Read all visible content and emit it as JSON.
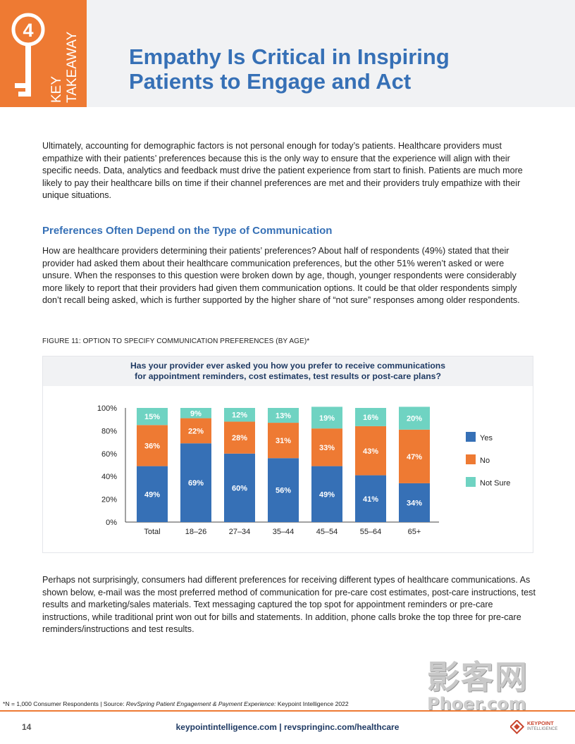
{
  "header": {
    "key_number": "4",
    "key_label_line1": "KEY",
    "key_label_line2": "TAKEAWAY",
    "title_line1": "Empathy Is Critical in Inspiring",
    "title_line2": "Patients to Engage and Act"
  },
  "body": {
    "paragraph1": "Ultimately, accounting for demographic factors is not personal enough for today’s patients. Healthcare providers must empathize with their patients’ preferences because this is the only way to ensure that the experience will align with their specific needs. Data, analytics and feedback must drive the patient experience from start to finish. Patients are much more likely to pay their healthcare bills on time if their channel preferences are met and their providers truly empathize with their unique situations.",
    "section_heading": "Preferences Often Depend on the Type of Communication",
    "paragraph2": "How are healthcare providers determining their patients’ preferences? About half of respondents (49%) stated that their provider had asked them about their healthcare communication preferences, but the other 51% weren’t asked or were unsure. When the responses to this question were broken down by age, though, younger respondents were considerably more likely to report that their providers had given them communication options. It could be that older respondents simply don’t recall being asked, which is further supported by the higher share of “not sure” responses among older respondents.",
    "paragraph3": "Perhaps not surprisingly, consumers had different preferences for receiving different types of healthcare communications. As shown below, e-mail was the most preferred method of communication for pre-care cost estimates, post-care instructions, test results and marketing/sales materials. Text messaging captured the top spot for appointment reminders or pre-care instructions, while traditional print won out for bills and statements. In addition, phone calls broke the top three for pre-care reminders/instructions and test results."
  },
  "figure": {
    "caption": "FIGURE 11: OPTION TO SPECIFY COMMUNICATION PREFERENCES (BY AGE)*",
    "question_line1": "Has your provider ever asked you how you prefer to receive communications",
    "question_line2": "for appointment reminders, cost estimates, test results or post-care plans?"
  },
  "chart_data": {
    "type": "bar",
    "stacked": true,
    "categories": [
      "Total",
      "18–26",
      "27–34",
      "35–44",
      "45–54",
      "55–64",
      "65+"
    ],
    "series": [
      {
        "name": "Yes",
        "color": "#3670b6",
        "values": [
          49,
          69,
          60,
          56,
          49,
          41,
          34
        ]
      },
      {
        "name": "No",
        "color": "#ee7a33",
        "values": [
          36,
          22,
          28,
          31,
          33,
          43,
          47
        ]
      },
      {
        "name": "Not Sure",
        "color": "#6fd3c2",
        "values": [
          15,
          9,
          12,
          13,
          19,
          16,
          20
        ]
      }
    ],
    "y_ticks": [
      "0%",
      "20%",
      "40%",
      "60%",
      "80%",
      "100%"
    ],
    "ylim": [
      0,
      100
    ],
    "value_suffix": "%",
    "legend_position": "right",
    "grid": false
  },
  "footer": {
    "footnote_prefix": "*N = 1,000 Consumer Respondents  |  Source: ",
    "footnote_italic": "RevSpring Patient Engagement & Payment Experience:",
    "footnote_suffix": " Keypoint Intelligence 2022",
    "page_number": "14",
    "links": "keypointintelligence.com  |  revspringinc.com/healthcare",
    "logo_line1": "KEYPOINT",
    "logo_line2": "INTELLIGENCE"
  },
  "watermark": {
    "chinese": "影客网",
    "latin": "Phoer.com"
  },
  "colors": {
    "accent_orange": "#ee7a33",
    "title_blue": "#3670b6",
    "navy": "#1f3a63"
  }
}
